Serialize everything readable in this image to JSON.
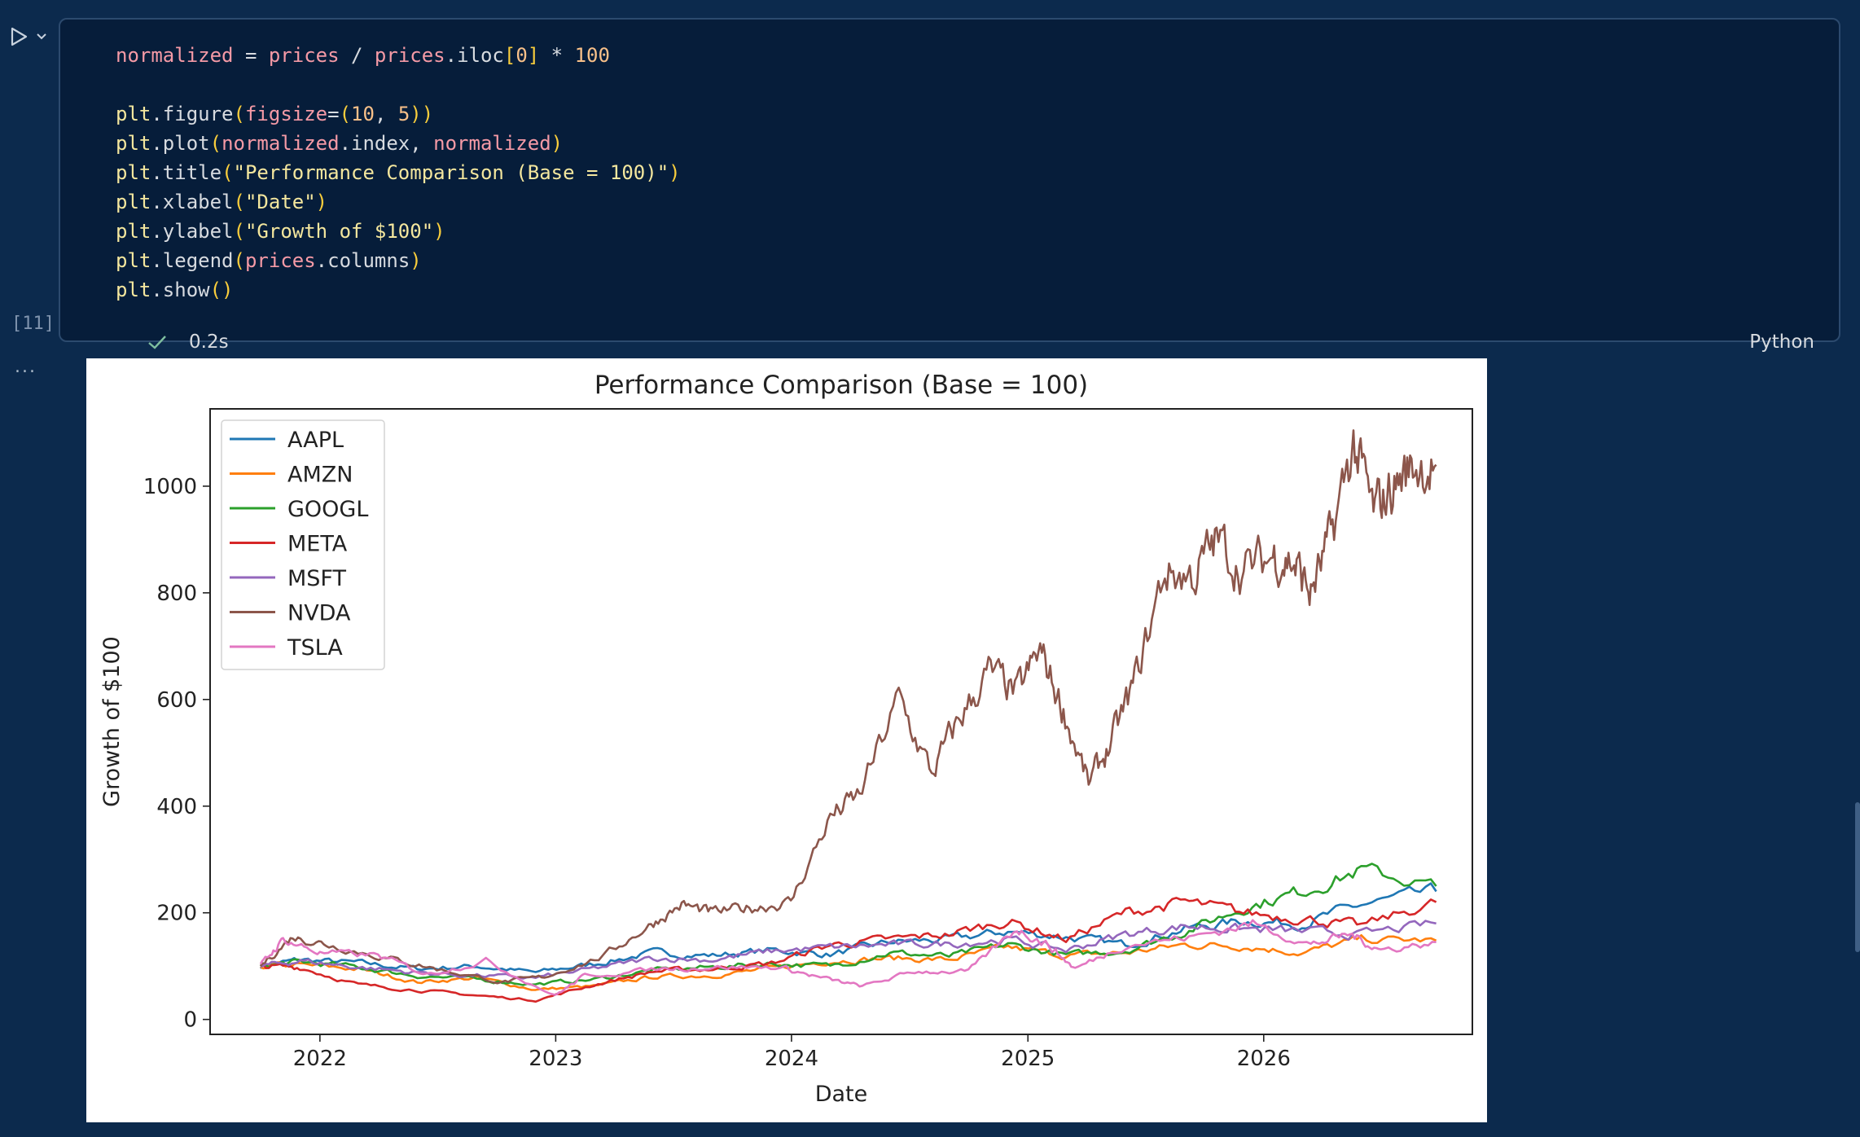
{
  "cell": {
    "code_lines": [
      [
        [
          "t-var",
          "normalized"
        ],
        [
          "",
          " = "
        ],
        [
          "t-var",
          "prices"
        ],
        [
          "",
          " / "
        ],
        [
          "t-var",
          "prices"
        ],
        [
          "t-attr",
          ".iloc"
        ],
        [
          "t-paren",
          "["
        ],
        [
          "t-num",
          "0"
        ],
        [
          "t-paren",
          "]"
        ],
        [
          "",
          " * "
        ],
        [
          "t-num",
          "100"
        ]
      ],
      [],
      [
        [
          "t-fn",
          "plt"
        ],
        [
          "",
          ".figure"
        ],
        [
          "t-paren",
          "("
        ],
        [
          "t-var",
          "figsize"
        ],
        [
          "",
          "="
        ],
        [
          "t-paren",
          "("
        ],
        [
          "t-num",
          "10"
        ],
        [
          "",
          ", "
        ],
        [
          "t-num",
          "5"
        ],
        [
          "t-paren",
          "))"
        ]
      ],
      [
        [
          "t-fn",
          "plt"
        ],
        [
          "",
          ".plot"
        ],
        [
          "t-paren",
          "("
        ],
        [
          "t-var",
          "normalized"
        ],
        [
          "",
          ".index, "
        ],
        [
          "t-var",
          "normalized"
        ],
        [
          "t-paren",
          ")"
        ]
      ],
      [
        [
          "t-fn",
          "plt"
        ],
        [
          "",
          ".title"
        ],
        [
          "t-paren",
          "("
        ],
        [
          "t-str",
          "\"Performance Comparison (Base = 100)\""
        ],
        [
          "t-paren",
          ")"
        ]
      ],
      [
        [
          "t-fn",
          "plt"
        ],
        [
          "",
          ".xlabel"
        ],
        [
          "t-paren",
          "("
        ],
        [
          "t-str",
          "\"Date\""
        ],
        [
          "t-paren",
          ")"
        ]
      ],
      [
        [
          "t-fn",
          "plt"
        ],
        [
          "",
          ".ylabel"
        ],
        [
          "t-paren",
          "("
        ],
        [
          "t-str",
          "\"Growth of $100\""
        ],
        [
          "t-paren",
          ")"
        ]
      ],
      [
        [
          "t-fn",
          "plt"
        ],
        [
          "",
          ".legend"
        ],
        [
          "t-paren",
          "("
        ],
        [
          "t-var",
          "prices"
        ],
        [
          "",
          ".columns"
        ],
        [
          "t-paren",
          ")"
        ]
      ],
      [
        [
          "t-fn",
          "plt"
        ],
        [
          "",
          ".show"
        ],
        [
          "t-paren",
          "()"
        ]
      ]
    ],
    "execution_count": "[11]",
    "duration": "0.2s",
    "language": "Python",
    "output_ellipsis": "..."
  },
  "chart_data": {
    "type": "line",
    "title": "Performance Comparison (Base = 100)",
    "xlabel": "Date",
    "ylabel": "Growth of $100",
    "xlim": [
      "2021-07-15",
      "2026-11-20"
    ],
    "ylim": [
      -28,
      1145
    ],
    "xticks": [
      "2022",
      "2023",
      "2024",
      "2025",
      "2026"
    ],
    "yticks": [
      0,
      200,
      400,
      600,
      800,
      1000
    ],
    "legend_position": "upper-left",
    "grid": false,
    "series": [
      {
        "name": "AAPL",
        "color": "#1f77b4",
        "x": [
          "2021-10-01",
          "2021-12-01",
          "2022-03-01",
          "2022-06-01",
          "2022-09-01",
          "2022-12-01",
          "2023-03-01",
          "2023-06-01",
          "2023-09-01",
          "2023-12-01",
          "2024-03-01",
          "2024-06-01",
          "2024-09-01",
          "2024-12-01",
          "2025-03-01",
          "2025-06-01",
          "2025-09-01",
          "2025-12-01",
          "2026-03-01",
          "2026-06-01",
          "2026-09-25"
        ],
        "y": [
          100,
          112,
          106,
          95,
          100,
          88,
          104,
          125,
          120,
          130,
          122,
          145,
          150,
          165,
          155,
          140,
          170,
          185,
          180,
          215,
          240
        ]
      },
      {
        "name": "AMZN",
        "color": "#ff7f0e",
        "x": [
          "2021-10-01",
          "2021-12-01",
          "2022-03-01",
          "2022-06-01",
          "2022-09-01",
          "2022-12-01",
          "2023-03-01",
          "2023-06-01",
          "2023-09-01",
          "2023-12-01",
          "2024-03-01",
          "2024-06-01",
          "2024-09-01",
          "2024-12-01",
          "2025-03-01",
          "2025-06-01",
          "2025-09-01",
          "2025-12-01",
          "2026-03-01",
          "2026-06-01",
          "2026-09-25"
        ],
        "y": [
          100,
          102,
          95,
          70,
          78,
          56,
          62,
          80,
          83,
          95,
          110,
          115,
          112,
          135,
          120,
          125,
          140,
          138,
          125,
          150,
          148
        ]
      },
      {
        "name": "GOOGL",
        "color": "#2ca02c",
        "x": [
          "2021-10-01",
          "2021-12-01",
          "2022-03-01",
          "2022-06-01",
          "2022-09-01",
          "2022-12-01",
          "2023-03-01",
          "2023-06-01",
          "2023-09-01",
          "2023-12-01",
          "2024-03-01",
          "2024-06-01",
          "2024-09-01",
          "2024-12-01",
          "2025-03-01",
          "2025-06-01",
          "2025-09-01",
          "2025-12-01",
          "2026-03-01",
          "2026-06-01",
          "2026-09-25"
        ],
        "y": [
          100,
          108,
          98,
          82,
          75,
          66,
          75,
          92,
          98,
          105,
          100,
          125,
          118,
          140,
          120,
          130,
          165,
          210,
          240,
          280,
          250
        ]
      },
      {
        "name": "META",
        "color": "#d62728",
        "x": [
          "2021-10-01",
          "2021-12-01",
          "2022-03-01",
          "2022-06-01",
          "2022-09-01",
          "2022-12-01",
          "2023-03-01",
          "2023-06-01",
          "2023-09-01",
          "2023-12-01",
          "2024-03-01",
          "2024-06-01",
          "2024-09-01",
          "2024-12-01",
          "2025-03-01",
          "2025-06-01",
          "2025-09-01",
          "2025-12-01",
          "2026-03-01",
          "2026-06-01",
          "2026-09-25"
        ],
        "y": [
          100,
          98,
          65,
          55,
          45,
          36,
          65,
          90,
          95,
          105,
          140,
          150,
          160,
          185,
          150,
          200,
          220,
          200,
          190,
          175,
          220
        ]
      },
      {
        "name": "MSFT",
        "color": "#9467bd",
        "x": [
          "2021-10-01",
          "2021-12-01",
          "2022-03-01",
          "2022-06-01",
          "2022-09-01",
          "2022-12-01",
          "2023-03-01",
          "2023-06-01",
          "2023-09-01",
          "2023-12-01",
          "2024-03-01",
          "2024-06-01",
          "2024-09-01",
          "2024-12-01",
          "2025-03-01",
          "2025-06-01",
          "2025-09-01",
          "2025-12-01",
          "2026-03-01",
          "2026-06-01",
          "2026-09-25"
        ],
        "y": [
          100,
          110,
          98,
          88,
          82,
          78,
          95,
          115,
          112,
          128,
          135,
          140,
          142,
          150,
          130,
          160,
          175,
          170,
          165,
          160,
          180
        ]
      },
      {
        "name": "NVDA",
        "color": "#8c564b",
        "x": [
          "2021-10-01",
          "2021-11-20",
          "2022-01-15",
          "2022-04-15",
          "2022-07-01",
          "2022-10-10",
          "2022-12-15",
          "2023-03-15",
          "2023-05-25",
          "2023-07-15",
          "2023-09-01",
          "2023-11-01",
          "2023-12-31",
          "2024-03-01",
          "2024-04-15",
          "2024-06-15",
          "2024-08-05",
          "2024-09-15",
          "2024-11-01",
          "2024-12-15",
          "2025-01-20",
          "2025-02-25",
          "2025-04-05",
          "2025-05-10",
          "2025-06-15",
          "2025-08-01",
          "2025-09-15",
          "2025-10-20",
          "2025-12-01",
          "2026-01-15",
          "2026-02-15",
          "2026-03-15",
          "2026-04-15",
          "2026-05-20",
          "2026-06-20",
          "2026-07-20",
          "2026-08-20",
          "2026-09-25"
        ],
        "y": [
          100,
          155,
          140,
          115,
          95,
          70,
          80,
          118,
          175,
          215,
          200,
          210,
          220,
          380,
          420,
          600,
          460,
          560,
          650,
          610,
          690,
          580,
          440,
          520,
          630,
          840,
          830,
          900,
          840,
          870,
          860,
          800,
          900,
          1080,
          950,
          1000,
          1040,
          1040
        ]
      },
      {
        "name": "TSLA",
        "color": "#e377c2",
        "x": [
          "2021-10-01",
          "2021-11-05",
          "2022-01-01",
          "2022-04-01",
          "2022-06-15",
          "2022-09-15",
          "2022-12-31",
          "2023-02-15",
          "2023-06-15",
          "2023-09-01",
          "2023-12-15",
          "2024-02-15",
          "2024-04-20",
          "2024-07-10",
          "2024-10-01",
          "2024-12-15",
          "2025-02-01",
          "2025-03-15",
          "2025-06-01",
          "2025-09-15",
          "2025-12-15",
          "2026-03-15",
          "2026-05-15",
          "2026-07-01",
          "2026-09-25"
        ],
        "y": [
          100,
          150,
          125,
          120,
          85,
          110,
          45,
          82,
          95,
          98,
          98,
          78,
          62,
          90,
          90,
          170,
          140,
          95,
          140,
          155,
          180,
          140,
          160,
          130,
          145
        ]
      }
    ]
  }
}
